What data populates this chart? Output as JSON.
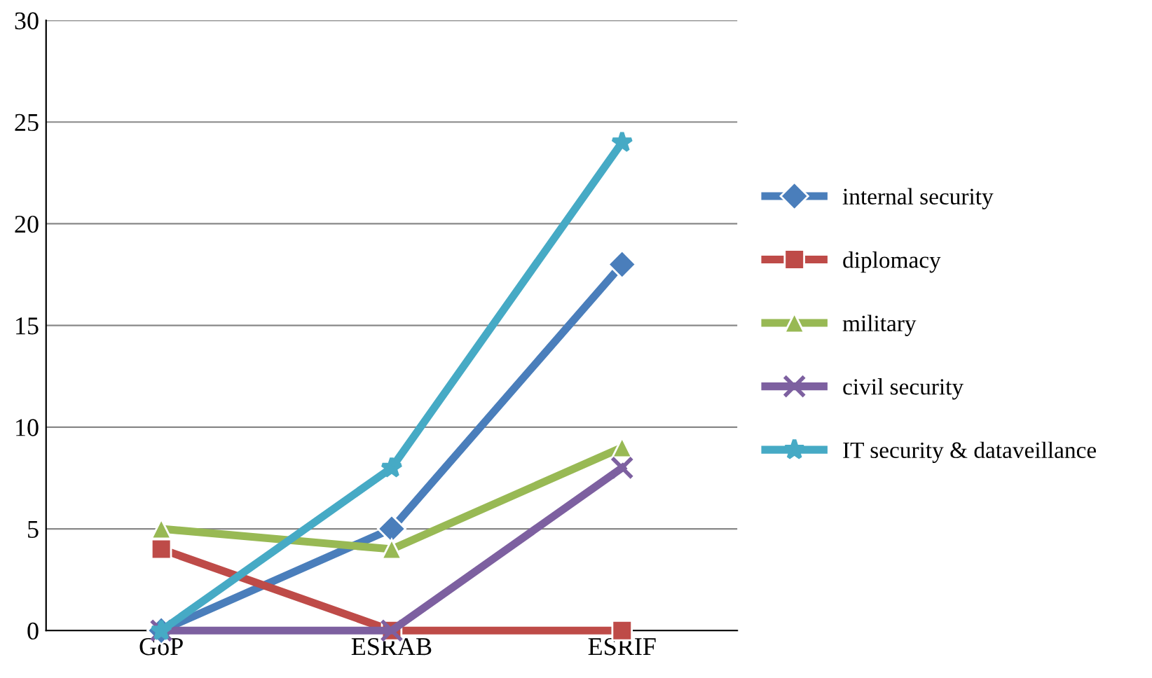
{
  "chart_data": {
    "type": "line",
    "categories": [
      "GoP",
      "ESRAB",
      "ESRIF"
    ],
    "series": [
      {
        "name": "internal security",
        "color": "#4a7ebb",
        "marker": "diamond",
        "values": [
          0,
          5,
          18
        ]
      },
      {
        "name": "diplomacy",
        "color": "#be4b48",
        "marker": "square",
        "values": [
          4,
          0,
          0
        ]
      },
      {
        "name": "military",
        "color": "#98b954",
        "marker": "triangle",
        "values": [
          5,
          4,
          9
        ]
      },
      {
        "name": "civil security",
        "color": "#7d60a0",
        "marker": "cross",
        "values": [
          0,
          0,
          8
        ]
      },
      {
        "name": "IT security & dataveillance",
        "color": "#46aac5",
        "marker": "star",
        "values": [
          0,
          8,
          24
        ]
      }
    ],
    "ylim": [
      0,
      30
    ],
    "yticks": [
      0,
      5,
      10,
      15,
      20,
      25,
      30
    ],
    "grid": "y",
    "legend": "right",
    "line_style": "solid"
  }
}
